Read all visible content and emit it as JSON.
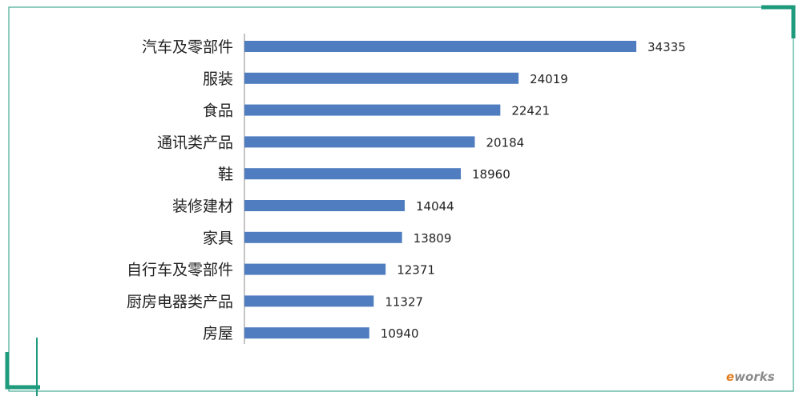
{
  "chart_data": {
    "type": "bar",
    "orientation": "horizontal",
    "categories": [
      "汽车及零部件",
      "服装",
      "食品",
      "通讯类产品",
      "鞋",
      "装修建材",
      "家具",
      "自行车及零部件",
      "厨房电器类产品",
      "房屋"
    ],
    "values": [
      34335,
      24019,
      22421,
      20184,
      18960,
      14044,
      13809,
      12371,
      11327,
      10940
    ],
    "data_labels": [
      "34335",
      "24019",
      "22421",
      "20184",
      "18960",
      "14044",
      "13809",
      "12371",
      "11327",
      "10940"
    ],
    "title": "",
    "xlabel": "",
    "ylabel": "",
    "xlim": [
      0,
      36000
    ],
    "grid": false,
    "legend": "none",
    "bar_color": "#4f7dc0"
  },
  "watermark": {
    "e": "e",
    "rest": "works"
  },
  "colors": {
    "frame": "#1e9a7c",
    "text": "#222222",
    "watermark_e": "#e07a1a",
    "watermark_rest": "#8a8a8a"
  }
}
